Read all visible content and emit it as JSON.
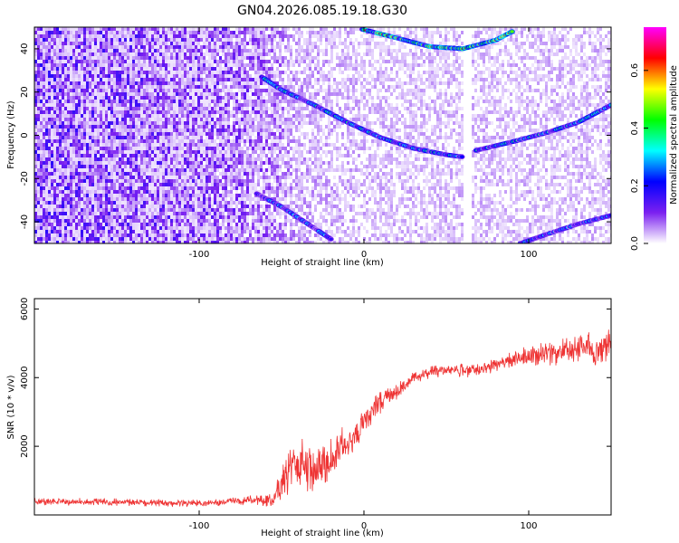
{
  "title": "GN04.2026.085.19.18.G30",
  "chart_data": [
    {
      "type": "heatmap",
      "title": "GN04.2026.085.19.18.G30",
      "xlabel": "Height of straight line (km)",
      "ylabel": "Frequency (Hz)",
      "xlim": [
        -200,
        150
      ],
      "ylim": [
        -50,
        50
      ],
      "xticks": [
        -100,
        0,
        100
      ],
      "yticks": [
        -40,
        -20,
        0,
        20,
        40
      ],
      "colorbar": {
        "label": "Normalized spectral amplitude",
        "range": [
          0.0,
          0.75
        ],
        "ticks": [
          0.0,
          0.2,
          0.4,
          0.6
        ],
        "colors": [
          "#ffffff",
          "#7b20f0",
          "#0000ff",
          "#00ffff",
          "#00ff00",
          "#ffff00",
          "#ff0000",
          "#ff00ff"
        ]
      },
      "background_amplitude": {
        "x": [
          -200,
          -150,
          -100,
          -65,
          -40,
          0,
          50,
          100,
          150
        ],
        "values": [
          0.1,
          0.09,
          0.08,
          0.07,
          0.04,
          0.03,
          0.03,
          0.03,
          0.03
        ]
      },
      "blank_band": {
        "x": [
          60,
          66
        ]
      },
      "series": [
        {
          "x": [
            -62,
            -50,
            -30,
            -10,
            10,
            30,
            50,
            60
          ],
          "y": [
            27,
            21,
            14,
            6,
            -1,
            -6,
            -9,
            -10
          ],
          "amplitude": 0.3
        },
        {
          "x": [
            68,
            90,
            110,
            130,
            150
          ],
          "y": [
            -7,
            -3,
            1,
            6,
            14
          ],
          "amplitude": 0.3
        },
        {
          "x": [
            -1,
            20,
            40,
            60,
            80,
            90
          ],
          "y": [
            49,
            45,
            41,
            40,
            44,
            48
          ],
          "amplitude": 0.5
        },
        {
          "x": [
            -65,
            -50,
            -30,
            -20
          ],
          "y": [
            -27,
            -33,
            -43,
            -48
          ],
          "amplitude": 0.25
        },
        {
          "x": [
            95,
            110,
            130,
            150
          ],
          "y": [
            -50,
            -46,
            -41,
            -37
          ],
          "amplitude": 0.25
        }
      ]
    },
    {
      "type": "line",
      "xlabel": "Height of straight line (km)",
      "ylabel": "SNR (10 * v/v)",
      "xlim": [
        -200,
        150
      ],
      "ylim": [
        0,
        6300
      ],
      "xticks": [
        -100,
        0,
        100
      ],
      "yticks": [
        2000,
        4000,
        6000
      ],
      "color": "#ee3333",
      "series": [
        {
          "x": [
            -200,
            -150,
            -100,
            -70,
            -55,
            -48,
            -42,
            -36,
            -30,
            -25,
            -20,
            -15,
            -10,
            -5,
            0,
            5,
            10,
            15,
            20,
            25,
            30,
            40,
            50,
            60,
            70,
            80,
            90,
            100,
            110,
            120,
            130,
            140,
            150
          ],
          "y": [
            400,
            370,
            340,
            420,
            450,
            1200,
            1500,
            1500,
            1250,
            1350,
            1600,
            1950,
            2100,
            2350,
            2600,
            3000,
            3250,
            3450,
            3600,
            3800,
            4000,
            4150,
            4250,
            4200,
            4250,
            4400,
            4550,
            4600,
            4700,
            4750,
            4900,
            4800,
            5000
          ],
          "noise": [
            120,
            120,
            120,
            150,
            250,
            900,
            900,
            850,
            800,
            800,
            700,
            650,
            600,
            550,
            500,
            450,
            400,
            350,
            300,
            250,
            230,
            220,
            220,
            220,
            220,
            250,
            300,
            350,
            380,
            420,
            500,
            600,
            500
          ]
        }
      ]
    }
  ]
}
